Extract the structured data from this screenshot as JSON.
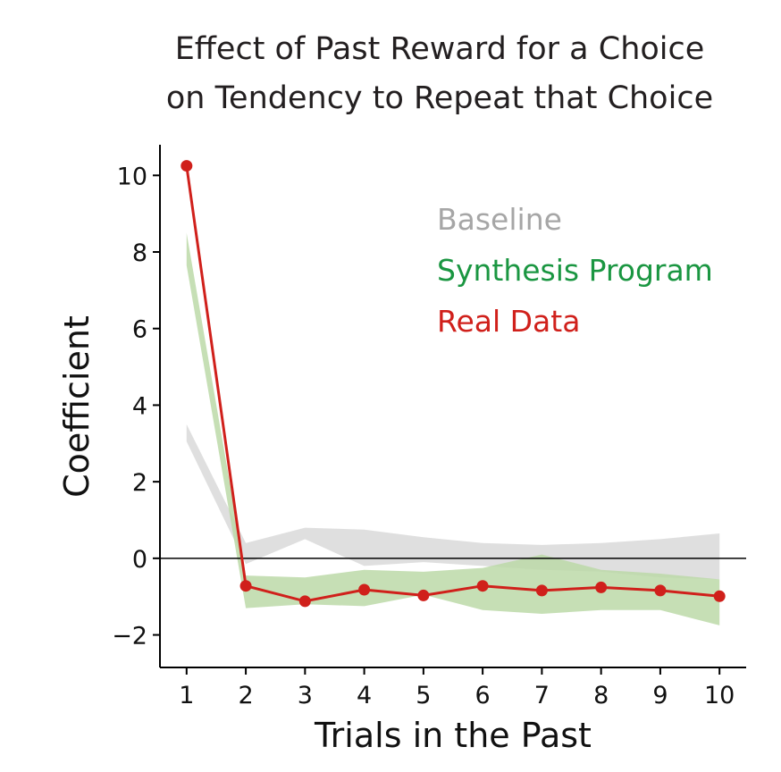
{
  "chart_data": {
    "type": "line",
    "title_lines": [
      "Effect of Past Reward for a Choice",
      "on Tendency to Repeat that Choice"
    ],
    "xlabel": "Trials in the Past",
    "ylabel": "Coefficient",
    "x": [
      1,
      2,
      3,
      4,
      5,
      6,
      7,
      8,
      9,
      10
    ],
    "xticks": [
      "1",
      "2",
      "3",
      "4",
      "5",
      "6",
      "7",
      "8",
      "9",
      "10"
    ],
    "yticks": [
      -2,
      0,
      2,
      4,
      6,
      8,
      10
    ],
    "ytick_labels": [
      "−2",
      "0",
      "2",
      "4",
      "6",
      "8",
      "10"
    ],
    "xlim": [
      0.55,
      10.45
    ],
    "ylim": [
      -2.85,
      10.8
    ],
    "zero_line": true,
    "legend_placement": "top-right",
    "series": [
      {
        "name": "Baseline",
        "kind": "band",
        "color": "#d9d9d9",
        "lower": [
          3.05,
          -0.15,
          0.5,
          -0.2,
          -0.1,
          -0.2,
          -0.3,
          -0.35,
          -0.5,
          -0.55
        ],
        "upper": [
          3.5,
          0.4,
          0.8,
          0.75,
          0.55,
          0.4,
          0.35,
          0.4,
          0.5,
          0.65
        ]
      },
      {
        "name": "Synthesis Program",
        "kind": "band",
        "color": "#bcd9a8",
        "lower": [
          7.65,
          -1.3,
          -1.2,
          -1.25,
          -0.95,
          -1.35,
          -1.45,
          -1.35,
          -1.35,
          -1.75
        ],
        "upper": [
          8.5,
          -0.45,
          -0.5,
          -0.3,
          -0.35,
          -0.25,
          0.1,
          -0.3,
          -0.4,
          -0.55
        ]
      },
      {
        "name": "Real Data",
        "kind": "line",
        "color": "#d0201b",
        "values": [
          10.25,
          -0.72,
          -1.12,
          -0.82,
          -0.97,
          -0.72,
          -0.84,
          -0.76,
          -0.84,
          -0.99
        ]
      }
    ],
    "legend": [
      {
        "label": "Baseline",
        "color": "#a6a6a6"
      },
      {
        "label": "Synthesis Program",
        "color": "#1a9641"
      },
      {
        "label": "Real Data",
        "color": "#d0201b"
      }
    ]
  }
}
